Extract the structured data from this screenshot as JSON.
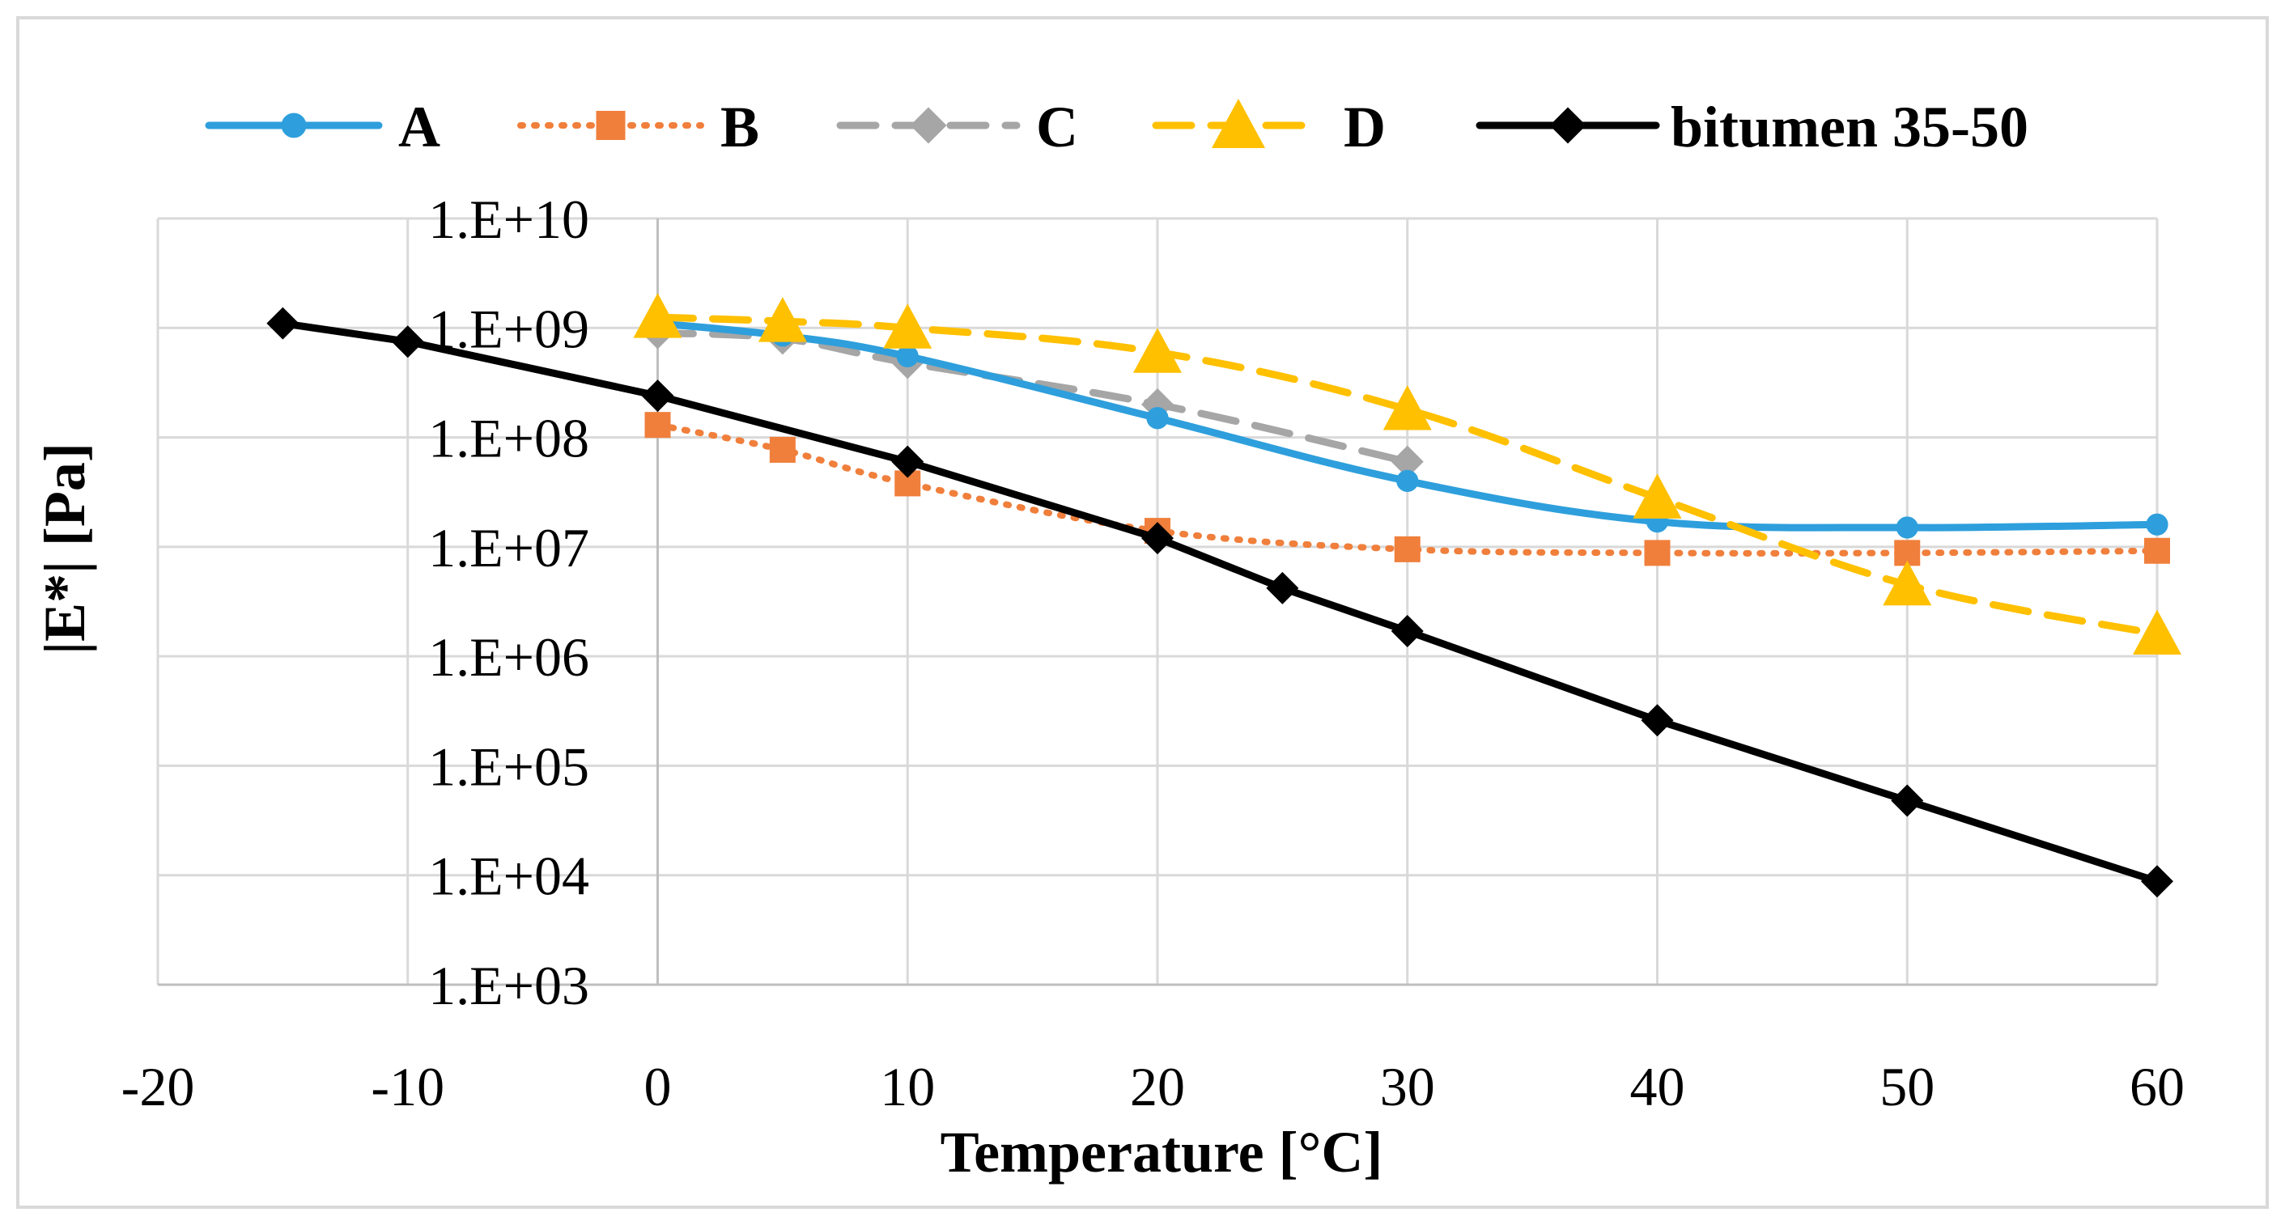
{
  "chart_data": {
    "type": "line",
    "title": "",
    "xlabel": "Temperature [°C]",
    "ylabel": "|E*| [Pa]",
    "xlim": [
      -20,
      60
    ],
    "x_ticks": [
      -20,
      -10,
      0,
      10,
      20,
      30,
      40,
      50,
      60
    ],
    "x_tick_labels": [
      "-20",
      "-10",
      "0",
      "10",
      "20",
      "30",
      "40",
      "50",
      "60"
    ],
    "y_scale": "log",
    "ylim": [
      1000,
      10000000000
    ],
    "y_ticks": [
      1000,
      10000,
      100000,
      1000000,
      10000000,
      100000000,
      1000000000,
      10000000000
    ],
    "y_tick_labels": [
      "1.E+03",
      "1.E+04",
      "1.E+05",
      "1.E+06",
      "1.E+07",
      "1.E+08",
      "1.E+09",
      "1.E+10"
    ],
    "grid": true,
    "legend_position": "top",
    "series": [
      {
        "name": "A",
        "color": "#2e9fdc",
        "line": "solid",
        "marker": "circle",
        "x": [
          0,
          5,
          10,
          20,
          30,
          40,
          50,
          60
        ],
        "y": [
          1100000000,
          850000000,
          550000000,
          150000000,
          40000000,
          17000000,
          15000000,
          16000000
        ]
      },
      {
        "name": "B",
        "color": "#f07f3c",
        "line": "dotted",
        "marker": "square",
        "x": [
          0,
          5,
          10,
          20,
          30,
          40,
          50,
          60
        ],
        "y": [
          130000000,
          77000000,
          38000000,
          14000000,
          9500000,
          8800000,
          8800000,
          9200000
        ]
      },
      {
        "name": "C",
        "color": "#a6a6a6",
        "line": "dashed",
        "marker": "diamond",
        "x": [
          0,
          5,
          10,
          20,
          30
        ],
        "y": [
          900000000,
          800000000,
          480000000,
          200000000,
          60000000
        ]
      },
      {
        "name": "D",
        "color": "#ffc000",
        "line": "dashed",
        "marker": "triangle",
        "x": [
          0,
          5,
          10,
          20,
          30,
          40,
          50,
          60
        ],
        "y": [
          1250000000,
          1150000000,
          1000000000,
          600000000,
          180000000,
          28000000,
          4500000,
          1600000
        ]
      },
      {
        "name": "bitumen 35-50",
        "color": "#000000",
        "line": "solid",
        "marker": "diamond",
        "x": [
          -15,
          -10,
          0,
          10,
          20,
          25,
          30,
          40,
          50,
          60
        ],
        "y": [
          1100000000,
          750000000,
          240000000,
          60000000,
          12000000,
          4200000,
          1700000,
          260000,
          48000,
          8800
        ]
      }
    ]
  }
}
